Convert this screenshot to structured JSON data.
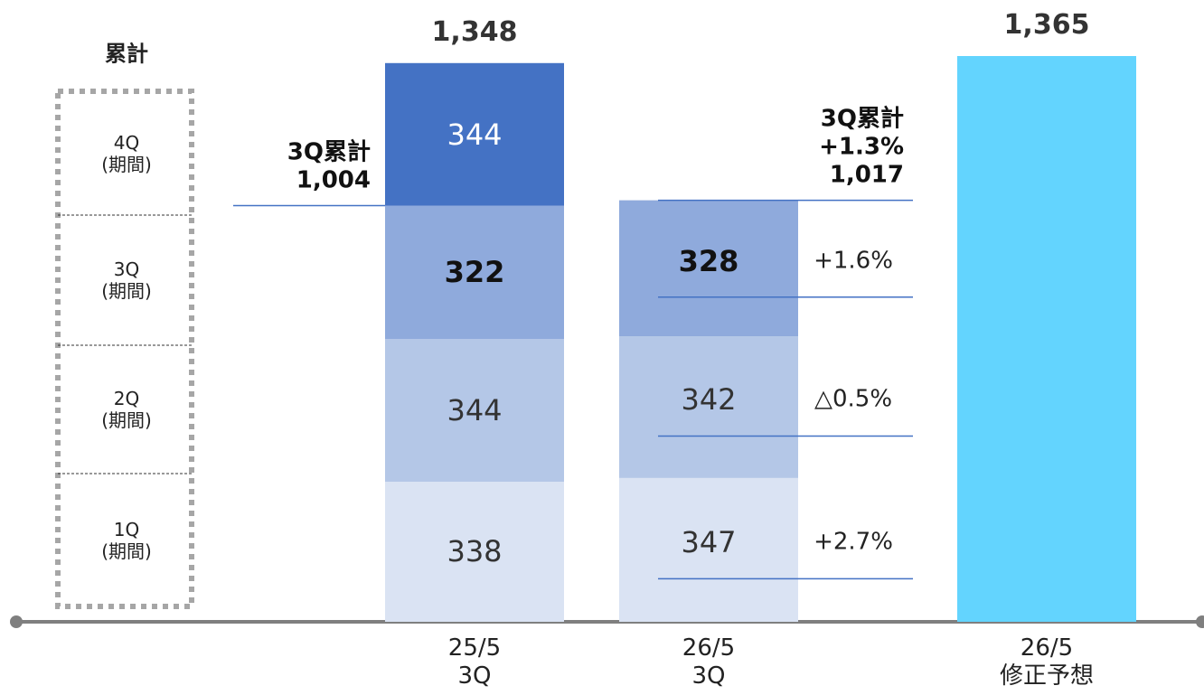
{
  "chart_data": {
    "type": "stacked_bar",
    "legend_title": "累計",
    "categories": [
      "25/5\n3Q",
      "26/5\n3Q",
      "26/5\n修正予想"
    ],
    "series": [
      {
        "name": "1Q\n(期間)",
        "color": "#dae3f3",
        "values": [
          338,
          347,
          null
        ]
      },
      {
        "name": "2Q\n(期間)",
        "color": "#b4c7e7",
        "values": [
          344,
          342,
          null
        ]
      },
      {
        "name": "3Q\n(期間)",
        "color": "#8faadc",
        "values": [
          322,
          328,
          null
        ]
      },
      {
        "name": "4Q\n(期間)",
        "color": "#4472c4",
        "values": [
          344,
          null,
          null
        ]
      },
      {
        "color": "#63d4fe",
        "values": [
          null,
          null,
          1365
        ]
      }
    ],
    "totals": {
      "values": [
        1348,
        null,
        1365
      ],
      "value_labels": [
        "1,348",
        null,
        "1,365"
      ]
    },
    "annotations": [
      {
        "text": "3Q累計\n1,004",
        "value": 1004
      },
      {
        "text": "3Q累計\n+1.3%\n1,017",
        "value": 1017
      }
    ],
    "growth": [
      "+2.7%",
      "△0.5%",
      "+1.6%"
    ],
    "ylim": [
      0,
      1365
    ]
  }
}
